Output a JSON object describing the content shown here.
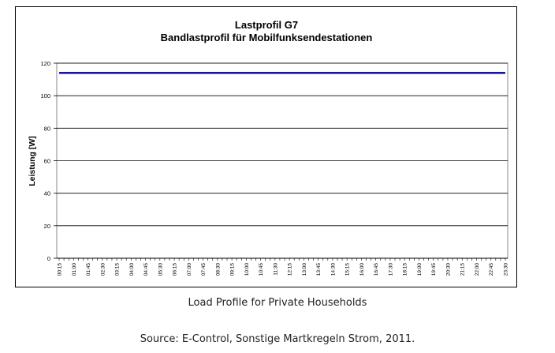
{
  "chart_data": {
    "type": "line",
    "title": "Lastprofil G7",
    "subtitle": "Bandlastprofil für Mobilfunksendestationen",
    "xlabel": "",
    "ylabel": "Leistung [W]",
    "ylim": [
      0,
      120
    ],
    "yticks": [
      0,
      20,
      40,
      60,
      80,
      100,
      120
    ],
    "grid": true,
    "categories": [
      "00:15",
      "01:00",
      "01:45",
      "02:30",
      "03:15",
      "04:00",
      "04:45",
      "05:30",
      "06:15",
      "07:00",
      "07:45",
      "08:30",
      "09:15",
      "10:00",
      "10:45",
      "11:30",
      "12:15",
      "13:00",
      "13:45",
      "14:30",
      "15:15",
      "16:00",
      "16:45",
      "17:30",
      "18:15",
      "19:00",
      "19:45",
      "20:30",
      "21:15",
      "22:00",
      "22:45",
      "23:30"
    ],
    "series": [
      {
        "values": [
          114,
          114,
          114,
          114,
          114,
          114,
          114,
          114,
          114,
          114,
          114,
          114,
          114,
          114,
          114,
          114,
          114,
          114,
          114,
          114,
          114,
          114,
          114,
          114,
          114,
          114,
          114,
          114,
          114,
          114,
          114,
          114
        ],
        "color": "#0000a0"
      }
    ]
  },
  "captions": {
    "main": "Load Profile for Private Households",
    "source": "Source: E-Control, Sonstige Martkregeln Strom, 2011."
  }
}
